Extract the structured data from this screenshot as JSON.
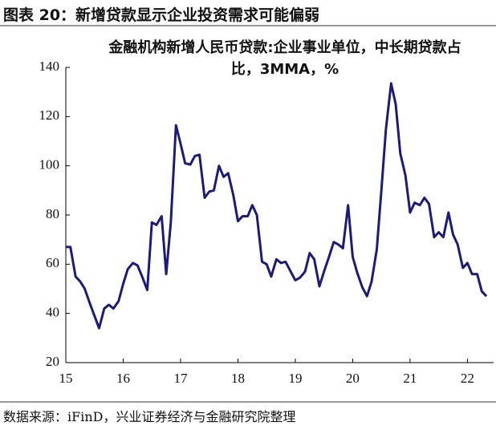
{
  "header": "图表 20：新增贷款显示企业投资需求可能偏弱",
  "source": "数据来源：iFinD，兴业证券经济与金融研究院整理",
  "chart_data": {
    "type": "line",
    "title": "金融机构新增人民币贷款:企业事业单位，中长期贷款占比，3MMA，%",
    "x": [
      15,
      15.08,
      15.17,
      15.25,
      15.33,
      15.42,
      15.5,
      15.58,
      15.67,
      15.75,
      15.83,
      15.92,
      16,
      16.08,
      16.17,
      16.25,
      16.33,
      16.42,
      16.5,
      16.58,
      16.67,
      16.75,
      16.83,
      16.92,
      17,
      17.08,
      17.17,
      17.25,
      17.33,
      17.42,
      17.5,
      17.58,
      17.67,
      17.75,
      17.83,
      17.92,
      18,
      18.08,
      18.17,
      18.25,
      18.33,
      18.42,
      18.5,
      18.58,
      18.67,
      18.75,
      18.83,
      18.92,
      19,
      19.08,
      19.17,
      19.25,
      19.33,
      19.42,
      19.5,
      19.58,
      19.67,
      19.75,
      19.83,
      19.92,
      20,
      20.08,
      20.17,
      20.25,
      20.33,
      20.42,
      20.5,
      20.58,
      20.67,
      20.75,
      20.83,
      20.92,
      21,
      21.08,
      21.17,
      21.25,
      21.33,
      21.42,
      21.5,
      21.58,
      21.67,
      21.75,
      21.83,
      21.92,
      22,
      22.08,
      22.17,
      22.25,
      22.33
    ],
    "series": [
      {
        "color": "#1c1c78",
        "values": [
          67,
          67,
          55,
          53,
          50,
          44,
          39,
          34,
          42,
          43.5,
          42,
          45,
          52,
          58,
          60.5,
          59.5,
          55,
          49.5,
          77,
          76,
          79.5,
          56,
          77,
          116.5,
          109,
          101,
          100.5,
          104,
          104.5,
          87,
          89.5,
          90,
          100,
          95.5,
          97,
          88,
          77.5,
          79.5,
          79.5,
          84,
          80,
          61,
          60,
          55,
          62,
          60.5,
          61,
          57,
          53.5,
          54.5,
          57,
          64.5,
          62,
          51,
          57,
          62.5,
          69,
          68,
          66.5,
          84,
          63,
          56.5,
          50.5,
          47,
          53,
          66,
          90,
          115,
          133.5,
          125,
          105,
          96,
          81,
          85,
          84,
          87,
          84.5,
          71,
          73,
          71,
          81,
          72,
          68,
          58.5,
          60.5,
          56,
          56,
          49,
          47
        ]
      }
    ],
    "xlim": [
      15,
      22.4
    ],
    "xticks": [
      15,
      16,
      17,
      18,
      19,
      20,
      21,
      22
    ],
    "ylim": [
      20,
      140
    ],
    "yticks": [
      20,
      40,
      60,
      80,
      100,
      120,
      140
    ]
  }
}
